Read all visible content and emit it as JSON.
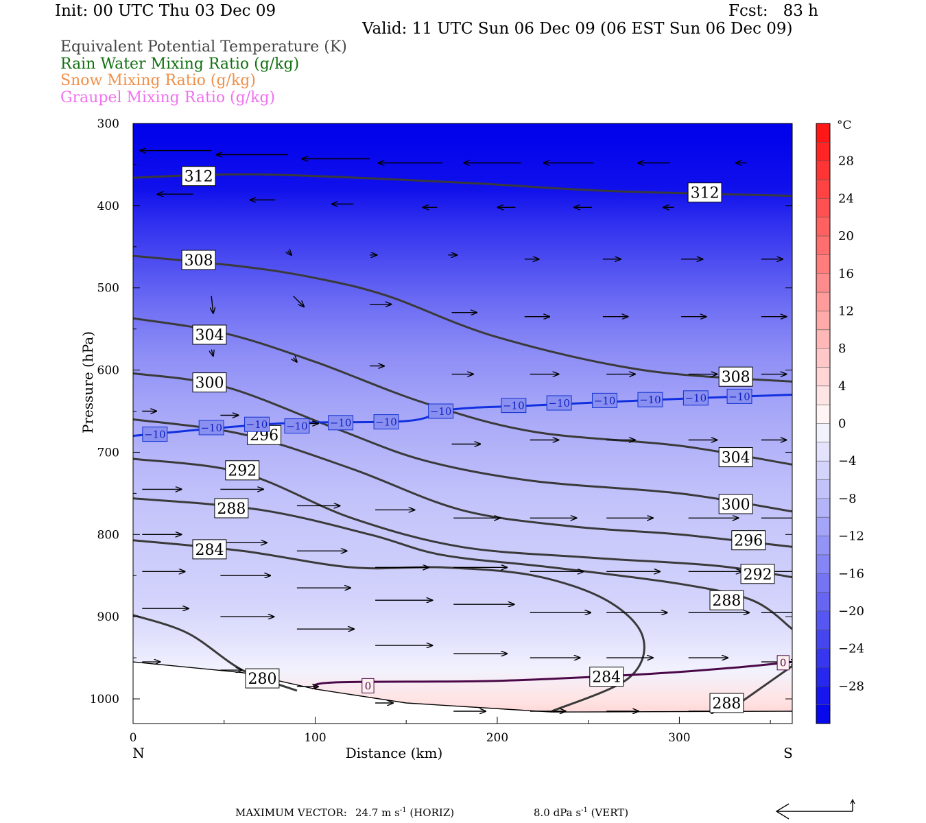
{
  "header": {
    "init": "Init: 00 UTC Thu 03 Dec 09",
    "fcst": "Fcst:   83 h",
    "valid": "Valid: 11 UTC Sun 06 Dec 09 (06 EST Sun 06 Dec 09)"
  },
  "legend": [
    {
      "label": "Equivalent Potential Temperature (K)",
      "color": "#444444"
    },
    {
      "label": "Rain Water Mixing Ratio (g/kg)",
      "color": "#107010"
    },
    {
      "label": "Snow Mixing Ratio (g/kg)",
      "color": "#f0904a"
    },
    {
      "label": "Graupel Mixing Ratio (g/kg)",
      "color": "#f070f0"
    }
  ],
  "footer": {
    "max_vector_label": "MAXIMUM VECTOR:",
    "horiz_value": "24.7 m s",
    "horiz_suffix": " (HORIZ)",
    "vert_value": "8.0 dPa s",
    "vert_suffix": " (VERT)",
    "exponent": "-1"
  },
  "chart_data": {
    "type": "cross-section",
    "xlabel": "Distance (km)",
    "ylabel": "Pressure (hPa)",
    "xlim": [
      0,
      362
    ],
    "ylim": [
      1030,
      300
    ],
    "x_ticks": [
      0,
      100,
      200,
      300
    ],
    "y_ticks": [
      300,
      400,
      500,
      600,
      700,
      800,
      900,
      1000
    ],
    "endpoint_labels": {
      "left": "N",
      "right": "S"
    },
    "surface_pressure": [
      [
        0,
        955
      ],
      [
        60,
        968
      ],
      [
        100,
        988
      ],
      [
        150,
        1005
      ],
      [
        230,
        1016
      ],
      [
        362,
        1015
      ]
    ],
    "colorbar": {
      "unit": "°C",
      "tick_labels": [
        "28",
        "24",
        "20",
        "16",
        "12",
        "8",
        "4",
        "0",
        "−4",
        "−8",
        "−12",
        "−16",
        "−20",
        "−24",
        "−28"
      ],
      "tick_values": [
        28,
        24,
        20,
        16,
        12,
        8,
        4,
        0,
        -4,
        -8,
        -12,
        -16,
        -20,
        -24,
        -28
      ],
      "range": [
        -32,
        32
      ]
    },
    "temperature_shading": [
      {
        "p": 300,
        "t": -32
      },
      {
        "p": 380,
        "t": -30
      },
      {
        "p": 420,
        "t": -26
      },
      {
        "p": 470,
        "t": -22
      },
      {
        "p": 520,
        "t": -18
      },
      {
        "p": 580,
        "t": -14
      },
      {
        "p": 640,
        "t": -11
      },
      {
        "p": 700,
        "t": -9
      },
      {
        "p": 760,
        "t": -7
      },
      {
        "p": 820,
        "t": -6
      },
      {
        "p": 880,
        "t": -5
      },
      {
        "p": 930,
        "t": -3
      },
      {
        "p": 965,
        "t": -1
      },
      {
        "p": 1000,
        "t": 3
      },
      {
        "p": 1030,
        "t": 6
      }
    ],
    "theta_e_contours": [
      {
        "value": 312,
        "points": [
          [
            0,
            366
          ],
          [
            70,
            362
          ],
          [
            180,
            372
          ],
          [
            260,
            382
          ],
          [
            362,
            388
          ]
        ],
        "labels": [
          {
            "text": "312",
            "x": 36,
            "p": 364
          },
          {
            "text": "312",
            "x": 314,
            "p": 384
          }
        ]
      },
      {
        "value": 308,
        "points": [
          [
            0,
            461
          ],
          [
            60,
            474
          ],
          [
            100,
            488
          ],
          [
            140,
            510
          ],
          [
            200,
            560
          ],
          [
            280,
            600
          ],
          [
            362,
            614
          ]
        ],
        "labels": [
          {
            "text": "308",
            "x": 36,
            "p": 466
          },
          {
            "text": "308",
            "x": 331,
            "p": 608
          }
        ]
      },
      {
        "value": 304,
        "points": [
          [
            0,
            537
          ],
          [
            50,
            555
          ],
          [
            100,
            590
          ],
          [
            160,
            640
          ],
          [
            220,
            675
          ],
          [
            300,
            692
          ],
          [
            362,
            715
          ]
        ],
        "labels": [
          {
            "text": "304",
            "x": 42,
            "p": 557
          },
          {
            "text": "304",
            "x": 331,
            "p": 706
          }
        ]
      },
      {
        "value": 300,
        "points": [
          [
            0,
            604
          ],
          [
            50,
            620
          ],
          [
            110,
            670
          ],
          [
            160,
            710
          ],
          [
            220,
            735
          ],
          [
            300,
            750
          ],
          [
            362,
            772
          ]
        ],
        "labels": [
          {
            "text": "300",
            "x": 42,
            "p": 615
          },
          {
            "text": "300",
            "x": 331,
            "p": 763
          }
        ]
      },
      {
        "value": 296,
        "points": [
          [
            0,
            660
          ],
          [
            60,
            678
          ],
          [
            120,
            720
          ],
          [
            180,
            770
          ],
          [
            240,
            790
          ],
          [
            300,
            800
          ],
          [
            362,
            815
          ]
        ],
        "labels": [
          {
            "text": "296",
            "x": 72,
            "p": 679
          },
          {
            "text": "296",
            "x": 338,
            "p": 807
          }
        ]
      },
      {
        "value": 292,
        "points": [
          [
            0,
            708
          ],
          [
            60,
            725
          ],
          [
            120,
            780
          ],
          [
            180,
            815
          ],
          [
            250,
            828
          ],
          [
            320,
            838
          ],
          [
            362,
            852
          ]
        ],
        "labels": [
          {
            "text": "292",
            "x": 60,
            "p": 722
          },
          {
            "text": "292",
            "x": 343,
            "p": 848
          }
        ]
      },
      {
        "value": 288,
        "points": [
          [
            0,
            756
          ],
          [
            70,
            770
          ],
          [
            130,
            800
          ],
          [
            170,
            825
          ],
          [
            230,
            840
          ],
          [
            300,
            860
          ],
          [
            340,
            880
          ],
          [
            362,
            915
          ]
        ],
        "labels": [
          {
            "text": "288",
            "x": 54,
            "p": 768
          },
          {
            "text": "288",
            "x": 326,
            "p": 880
          }
        ]
      },
      {
        "value": 284,
        "points": [
          [
            0,
            807
          ],
          [
            60,
            820
          ],
          [
            120,
            840
          ],
          [
            170,
            840
          ],
          [
            220,
            850
          ],
          [
            260,
            880
          ],
          [
            280,
            925
          ],
          [
            272,
            975
          ],
          [
            230,
            1015
          ]
        ],
        "labels": [
          {
            "text": "284",
            "x": 42,
            "p": 818
          },
          {
            "text": "284",
            "x": 260,
            "p": 973
          }
        ]
      },
      {
        "value": 280,
        "points": [
          [
            0,
            898
          ],
          [
            30,
            920
          ],
          [
            60,
            965
          ],
          [
            90,
            990
          ]
        ],
        "labels": [
          {
            "text": "280",
            "x": 71,
            "p": 975
          }
        ]
      },
      {
        "value": 288,
        "points": [
          [
            330,
            1010
          ],
          [
            362,
            960
          ]
        ],
        "labels": [
          {
            "text": "288",
            "x": 326,
            "p": 1005
          }
        ]
      }
    ],
    "isotherm_minus10": {
      "value": -10,
      "points": [
        [
          0,
          680
        ],
        [
          80,
          665
        ],
        [
          150,
          662
        ],
        [
          175,
          648
        ],
        [
          220,
          643
        ],
        [
          300,
          635
        ],
        [
          362,
          630
        ]
      ],
      "labels": [
        {
          "text": "−10",
          "x": 12,
          "p": 678
        },
        {
          "text": "−10",
          "x": 43,
          "p": 670
        },
        {
          "text": "−10",
          "x": 68,
          "p": 666
        },
        {
          "text": "−10",
          "x": 90,
          "p": 668
        },
        {
          "text": "−10",
          "x": 114,
          "p": 664
        },
        {
          "text": "−10",
          "x": 139,
          "p": 663
        },
        {
          "text": "−10",
          "x": 169,
          "p": 650
        },
        {
          "text": "−10",
          "x": 209,
          "p": 643
        },
        {
          "text": "−10",
          "x": 234,
          "p": 640
        },
        {
          "text": "−10",
          "x": 259,
          "p": 637
        },
        {
          "text": "−10",
          "x": 284,
          "p": 636
        },
        {
          "text": "−10",
          "x": 309,
          "p": 634
        },
        {
          "text": "−10",
          "x": 333,
          "p": 632
        }
      ]
    },
    "isotherm_zero": {
      "value": 0,
      "points": [
        [
          100,
          988
        ],
        [
          110,
          980
        ],
        [
          200,
          978
        ],
        [
          280,
          970
        ],
        [
          330,
          962
        ],
        [
          362,
          955
        ]
      ],
      "labels": [
        {
          "text": "0",
          "x": 129,
          "p": 984
        },
        {
          "text": "0",
          "x": 357,
          "p": 956
        }
      ]
    },
    "wind_vectors": [
      {
        "x": 43,
        "p": 333,
        "u": -40,
        "w": 0
      },
      {
        "x": 85,
        "p": 338,
        "u": -40,
        "w": 0
      },
      {
        "x": 130,
        "p": 343,
        "u": -38,
        "w": 0
      },
      {
        "x": 170,
        "p": 348,
        "u": -36,
        "w": 0
      },
      {
        "x": 213,
        "p": 348,
        "u": -32,
        "w": 0
      },
      {
        "x": 253,
        "p": 348,
        "u": -28,
        "w": 0
      },
      {
        "x": 295,
        "p": 348,
        "u": -18,
        "w": 0
      },
      {
        "x": 337,
        "p": 348,
        "u": -6,
        "w": 0
      },
      {
        "x": 33,
        "p": 386,
        "u": -20,
        "w": 0
      },
      {
        "x": 78,
        "p": 393,
        "u": -14,
        "w": 0
      },
      {
        "x": 121,
        "p": 398,
        "u": -12,
        "w": 0
      },
      {
        "x": 167,
        "p": 402,
        "u": -8,
        "w": 0
      },
      {
        "x": 210,
        "p": 402,
        "u": -10,
        "w": 0
      },
      {
        "x": 252,
        "p": 402,
        "u": -10,
        "w": 0
      },
      {
        "x": 297,
        "p": 402,
        "u": -6,
        "w": 0
      },
      {
        "x": 43,
        "p": 455,
        "u": -3,
        "w": 12
      },
      {
        "x": 85,
        "p": 455,
        "u": 2,
        "w": 4
      },
      {
        "x": 130,
        "p": 460,
        "u": 4,
        "w": 0
      },
      {
        "x": 173,
        "p": 460,
        "u": 5,
        "w": 0
      },
      {
        "x": 215,
        "p": 465,
        "u": 8,
        "w": 0
      },
      {
        "x": 258,
        "p": 465,
        "u": 10,
        "w": 0
      },
      {
        "x": 301,
        "p": 465,
        "u": 12,
        "w": 0
      },
      {
        "x": 345,
        "p": 465,
        "u": 12,
        "w": 0
      },
      {
        "x": 43,
        "p": 510,
        "u": 1,
        "w": 16
      },
      {
        "x": 88,
        "p": 510,
        "u": 6,
        "w": 10
      },
      {
        "x": 130,
        "p": 520,
        "u": 12,
        "w": 0
      },
      {
        "x": 175,
        "p": 530,
        "u": 14,
        "w": 0
      },
      {
        "x": 215,
        "p": 535,
        "u": 14,
        "w": 0
      },
      {
        "x": 258,
        "p": 535,
        "u": 14,
        "w": 0
      },
      {
        "x": 301,
        "p": 535,
        "u": 14,
        "w": 0
      },
      {
        "x": 345,
        "p": 535,
        "u": 14,
        "w": 0
      },
      {
        "x": 43,
        "p": 575,
        "u": 1,
        "w": 6
      },
      {
        "x": 88,
        "p": 585,
        "u": 2,
        "w": 4
      },
      {
        "x": 130,
        "p": 595,
        "u": 8,
        "w": 0
      },
      {
        "x": 175,
        "p": 605,
        "u": 12,
        "w": 0
      },
      {
        "x": 218,
        "p": 605,
        "u": 16,
        "w": 0
      },
      {
        "x": 260,
        "p": 605,
        "u": 16,
        "w": 0
      },
      {
        "x": 305,
        "p": 605,
        "u": 16,
        "w": 0
      },
      {
        "x": 345,
        "p": 605,
        "u": 14,
        "w": 0
      },
      {
        "x": 5,
        "p": 650,
        "u": 8,
        "w": 0
      },
      {
        "x": 48,
        "p": 655,
        "u": 10,
        "w": 0
      },
      {
        "x": 90,
        "p": 665,
        "u": 12,
        "w": 0
      },
      {
        "x": 175,
        "p": 690,
        "u": 16,
        "w": 0
      },
      {
        "x": 218,
        "p": 685,
        "u": 16,
        "w": 0
      },
      {
        "x": 260,
        "p": 685,
        "u": 16,
        "w": 0
      },
      {
        "x": 305,
        "p": 685,
        "u": 16,
        "w": 0
      },
      {
        "x": 345,
        "p": 685,
        "u": 14,
        "w": 0
      },
      {
        "x": 5,
        "p": 745,
        "u": 22,
        "w": 0
      },
      {
        "x": 48,
        "p": 745,
        "u": 24,
        "w": 0
      },
      {
        "x": 90,
        "p": 765,
        "u": 24,
        "w": 0
      },
      {
        "x": 133,
        "p": 770,
        "u": 22,
        "w": 0
      },
      {
        "x": 176,
        "p": 780,
        "u": 26,
        "w": 0
      },
      {
        "x": 218,
        "p": 780,
        "u": 26,
        "w": 0
      },
      {
        "x": 260,
        "p": 780,
        "u": 26,
        "w": 0
      },
      {
        "x": 305,
        "p": 780,
        "u": 28,
        "w": 0
      },
      {
        "x": 345,
        "p": 780,
        "u": 28,
        "w": 0
      },
      {
        "x": 5,
        "p": 800,
        "u": 22,
        "w": 0
      },
      {
        "x": 48,
        "p": 810,
        "u": 26,
        "w": 0
      },
      {
        "x": 90,
        "p": 820,
        "u": 28,
        "w": 0
      },
      {
        "x": 133,
        "p": 840,
        "u": 30,
        "w": 0
      },
      {
        "x": 176,
        "p": 840,
        "u": 30,
        "w": 0
      },
      {
        "x": 218,
        "p": 845,
        "u": 30,
        "w": 0
      },
      {
        "x": 260,
        "p": 845,
        "u": 30,
        "w": 0
      },
      {
        "x": 305,
        "p": 845,
        "u": 30,
        "w": 0
      },
      {
        "x": 345,
        "p": 845,
        "u": 30,
        "w": 0
      },
      {
        "x": 5,
        "p": 845,
        "u": 24,
        "w": 0
      },
      {
        "x": 48,
        "p": 850,
        "u": 28,
        "w": 0
      },
      {
        "x": 90,
        "p": 865,
        "u": 30,
        "w": 0
      },
      {
        "x": 133,
        "p": 880,
        "u": 32,
        "w": 0
      },
      {
        "x": 176,
        "p": 885,
        "u": 34,
        "w": 0
      },
      {
        "x": 218,
        "p": 895,
        "u": 34,
        "w": 0
      },
      {
        "x": 260,
        "p": 895,
        "u": 34,
        "w": 0
      },
      {
        "x": 305,
        "p": 895,
        "u": 34,
        "w": 0
      },
      {
        "x": 345,
        "p": 895,
        "u": 30,
        "w": 0
      },
      {
        "x": 5,
        "p": 890,
        "u": 26,
        "w": 0
      },
      {
        "x": 48,
        "p": 900,
        "u": 30,
        "w": 0
      },
      {
        "x": 90,
        "p": 915,
        "u": 32,
        "w": 0
      },
      {
        "x": 133,
        "p": 935,
        "u": 32,
        "w": 0
      },
      {
        "x": 176,
        "p": 945,
        "u": 30,
        "w": 0
      },
      {
        "x": 218,
        "p": 950,
        "u": 28,
        "w": 0
      },
      {
        "x": 260,
        "p": 950,
        "u": 26,
        "w": 0
      },
      {
        "x": 305,
        "p": 950,
        "u": 22,
        "w": 0
      },
      {
        "x": 345,
        "p": 955,
        "u": 20,
        "w": 0
      },
      {
        "x": 5,
        "p": 955,
        "u": 10,
        "w": 0
      },
      {
        "x": 48,
        "p": 965,
        "u": 12,
        "w": 0
      },
      {
        "x": 90,
        "p": 985,
        "u": 12,
        "w": 0
      },
      {
        "x": 133,
        "p": 1005,
        "u": 10,
        "w": 0
      },
      {
        "x": 176,
        "p": 1015,
        "u": 18,
        "w": 0
      },
      {
        "x": 218,
        "p": 1015,
        "u": 20,
        "w": 0
      },
      {
        "x": 260,
        "p": 1015,
        "u": 18,
        "w": 0
      },
      {
        "x": 305,
        "p": 1015,
        "u": 16,
        "w": 0
      }
    ],
    "max_vector": {
      "horiz": 24.7,
      "vert": 8.0
    }
  }
}
